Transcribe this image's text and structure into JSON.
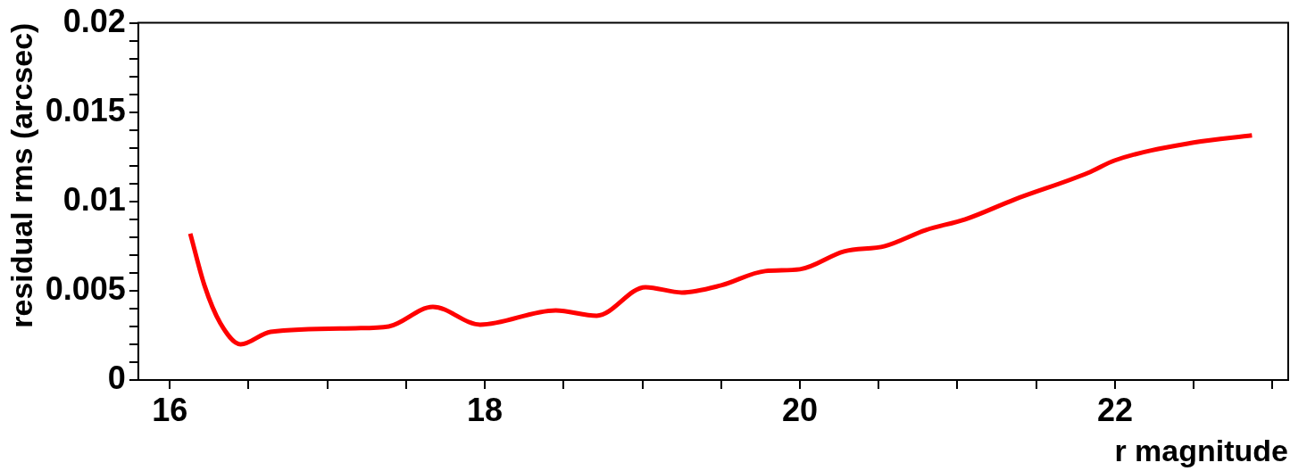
{
  "chart_data": {
    "type": "line",
    "xlabel": "r magnitude",
    "ylabel": "residual rms (arcsec)",
    "xlim": [
      15.8,
      23.1
    ],
    "xticks": [
      16,
      {
        "value": 16.5,
        "label": null
      },
      {
        "value": 17,
        "label": null
      },
      {
        "value": 17.5,
        "label": null
      },
      18,
      {
        "value": 18.5,
        "label": null
      },
      {
        "value": 19,
        "label": null
      },
      {
        "value": 19.5,
        "label": null
      },
      20,
      {
        "value": 20.5,
        "label": null
      },
      {
        "value": 21,
        "label": null
      },
      {
        "value": 21.5,
        "label": null
      },
      22,
      {
        "value": 22.5,
        "label": null
      },
      {
        "value": 23,
        "label": null
      }
    ],
    "ylim": [
      0,
      0.02
    ],
    "yticks": [
      0,
      {
        "value": 0.001,
        "label": null
      },
      {
        "value": 0.002,
        "label": null
      },
      {
        "value": 0.003,
        "label": null
      },
      {
        "value": 0.004,
        "label": null
      },
      0.005,
      {
        "value": 0.006,
        "label": null
      },
      {
        "value": 0.007,
        "label": null
      },
      {
        "value": 0.008,
        "label": null
      },
      {
        "value": 0.009,
        "label": null
      },
      0.01,
      {
        "value": 0.011,
        "label": null
      },
      {
        "value": 0.012,
        "label": null
      },
      {
        "value": 0.013,
        "label": null
      },
      {
        "value": 0.014,
        "label": null
      },
      0.015,
      {
        "value": 0.016,
        "label": null
      },
      {
        "value": 0.017,
        "label": null
      },
      {
        "value": 0.018,
        "label": null
      },
      {
        "value": 0.019,
        "label": null
      },
      0.02
    ],
    "grid": false,
    "legend": false,
    "marker": "none",
    "line_style": "solid",
    "series": [
      {
        "color": "#ff0000",
        "x": [
          16.13,
          16.22,
          16.32,
          16.45,
          16.64,
          17.18,
          17.39,
          17.67,
          17.97,
          18.45,
          18.71,
          19.02,
          19.25,
          19.5,
          19.78,
          20.0,
          20.28,
          20.54,
          20.8,
          21.05,
          21.36,
          21.83,
          22.0,
          22.5,
          22.87
        ],
        "values": [
          0.0082,
          0.0053,
          0.0032,
          0.002,
          0.0027,
          0.0029,
          0.003,
          0.0041,
          0.0031,
          0.0039,
          0.0036,
          0.0052,
          0.0049,
          0.0053,
          0.0061,
          0.0062,
          0.0072,
          0.0075,
          0.0084,
          0.009,
          0.0101,
          0.0116,
          0.0123,
          0.0133,
          0.0137
        ]
      }
    ]
  }
}
